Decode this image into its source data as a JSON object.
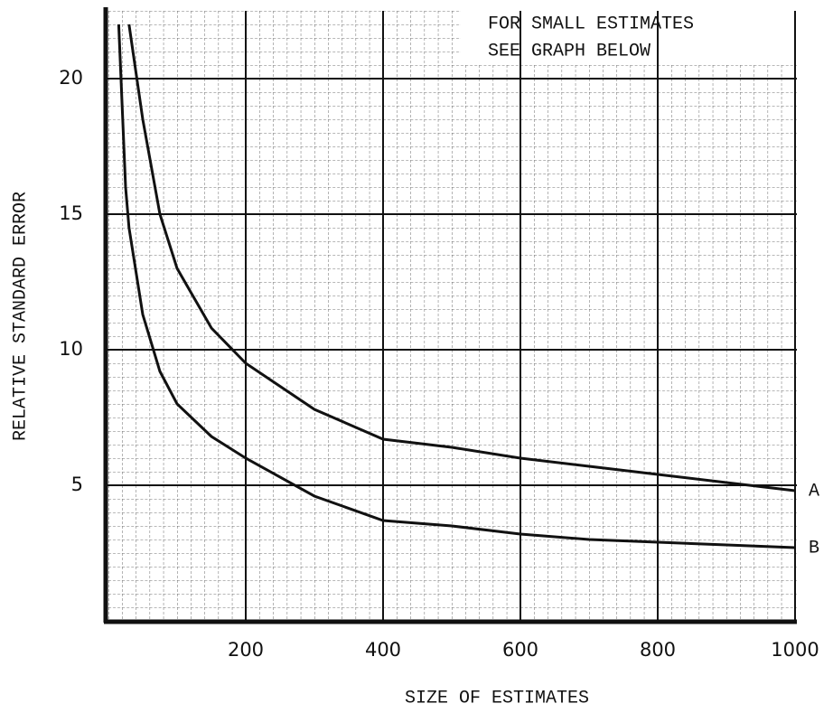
{
  "chart_data": {
    "type": "line",
    "annotations": [
      "FOR SMALL ESTIMATES",
      "SEE GRAPH BELOW"
    ],
    "xlabel": "SIZE OF ESTIMATES",
    "ylabel": "RELATIVE STANDARD ERROR",
    "x": [
      15,
      25,
      30,
      50,
      75,
      100,
      150,
      200,
      300,
      400,
      500,
      600,
      700,
      800,
      900,
      1000
    ],
    "series": [
      {
        "name": "A",
        "color": "#111111",
        "values": [
          null,
          null,
          22,
          18.5,
          15,
          13,
          10.8,
          9.5,
          7.8,
          6.7,
          6.4,
          6.0,
          5.7,
          5.4,
          5.1,
          4.8
        ]
      },
      {
        "name": "B",
        "color": "#111111",
        "values": [
          22,
          16,
          14.5,
          11.3,
          9.2,
          8,
          6.8,
          6,
          4.6,
          3.7,
          3.5,
          3.2,
          3.0,
          2.9,
          2.8,
          2.7
        ]
      }
    ],
    "xlim": [
      0,
      1000
    ],
    "ylim": [
      0,
      22.5
    ],
    "xticks": [
      200,
      400,
      600,
      800,
      1000
    ],
    "yticks": [
      5,
      10,
      15,
      20
    ],
    "grid": true
  }
}
